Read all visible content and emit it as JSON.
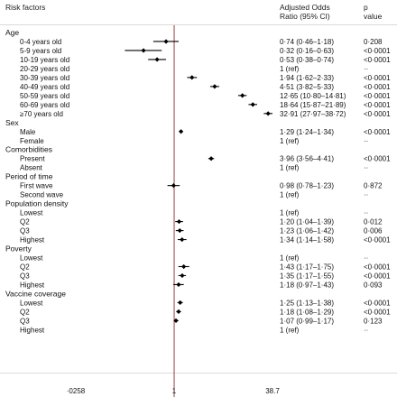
{
  "header": {
    "factor": "Risk factors",
    "or_line1": "Adjusted Odds",
    "or_line2": "Ratio (95% CI)",
    "p_line1": "p",
    "p_line2": "value"
  },
  "chart_data": {
    "type": "forest",
    "scale": "log",
    "xlim": [
      0.0258,
      38.7
    ],
    "xticks": [
      "·0258",
      "1",
      "38.7"
    ],
    "reference_line": 1,
    "colors": {
      "reference_line": "#8b2a2a",
      "marks": "#000000",
      "gridline": "#cfcfcf"
    },
    "rows": [
      {
        "kind": "group",
        "label": "Age"
      },
      {
        "kind": "item",
        "label": "0-4 years old",
        "or": 0.74,
        "lo": 0.46,
        "hi": 1.18,
        "text": "0·74 (0·46–1·18)",
        "p": "0·208"
      },
      {
        "kind": "item",
        "label": "5-9 years old",
        "or": 0.32,
        "lo": 0.16,
        "hi": 0.63,
        "text": "0·32 (0·16–0·63)",
        "p": "<0·0001"
      },
      {
        "kind": "item",
        "label": "10-19 years old",
        "or": 0.53,
        "lo": 0.38,
        "hi": 0.74,
        "text": "0·53 (0·38–0·74)",
        "p": "<0·0001"
      },
      {
        "kind": "item",
        "label": "20-29 years old",
        "text": "1 (ref)",
        "p": "··"
      },
      {
        "kind": "item",
        "label": "30-39 years old",
        "or": 1.94,
        "lo": 1.62,
        "hi": 2.33,
        "text": "1·94 (1·62–2·33)",
        "p": "<0·0001"
      },
      {
        "kind": "item",
        "label": "40-49 years old",
        "or": 4.51,
        "lo": 3.82,
        "hi": 5.33,
        "text": "4·51 (3·82–5·33)",
        "p": "<0·0001"
      },
      {
        "kind": "item",
        "label": "50-59 years old",
        "or": 12.65,
        "lo": 10.8,
        "hi": 14.81,
        "text": "12·65 (10·80–14·81)",
        "p": "<0·0001"
      },
      {
        "kind": "item",
        "label": "60-69 years old",
        "or": 18.64,
        "lo": 15.87,
        "hi": 21.89,
        "text": "18·64 (15·87–21·89)",
        "p": "<0·0001"
      },
      {
        "kind": "item",
        "label": "≥70 years old",
        "or": 32.91,
        "lo": 27.97,
        "hi": 38.72,
        "text": "32·91 (27·97–38·72)",
        "p": "<0·0001"
      },
      {
        "kind": "group",
        "label": "Sex"
      },
      {
        "kind": "item",
        "label": "Male",
        "or": 1.29,
        "lo": 1.24,
        "hi": 1.34,
        "text": "1·29 (1·24–1·34)",
        "p": "<0·0001"
      },
      {
        "kind": "item",
        "label": "Female",
        "text": "1 (ref)",
        "p": "··"
      },
      {
        "kind": "group",
        "label": "Comorbidities"
      },
      {
        "kind": "item",
        "label": "Present",
        "or": 3.96,
        "lo": 3.56,
        "hi": 4.41,
        "text": "3·96 (3·56–4·41)",
        "p": "<0·0001"
      },
      {
        "kind": "item",
        "label": "Absent",
        "text": "1 (ref)",
        "p": "··"
      },
      {
        "kind": "group",
        "label": "Period of time"
      },
      {
        "kind": "item",
        "label": "First wave",
        "or": 0.98,
        "lo": 0.78,
        "hi": 1.23,
        "text": "0·98 (0·78–1·23)",
        "p": "0·872"
      },
      {
        "kind": "item",
        "label": "Second wave",
        "text": "1 (ref)",
        "p": "··"
      },
      {
        "kind": "group",
        "label": "Population density"
      },
      {
        "kind": "item",
        "label": "Lowest",
        "text": "1 (ref)",
        "p": "··"
      },
      {
        "kind": "item",
        "label": "Q2",
        "or": 1.2,
        "lo": 1.04,
        "hi": 1.39,
        "text": "1·20 (1·04–1·39)",
        "p": "0·012"
      },
      {
        "kind": "item",
        "label": "Q3",
        "or": 1.23,
        "lo": 1.06,
        "hi": 1.42,
        "text": "1·23 (1·06–1·42)",
        "p": "0·006"
      },
      {
        "kind": "item",
        "label": "Highest",
        "or": 1.34,
        "lo": 1.14,
        "hi": 1.58,
        "text": "1·34 (1·14–1·58)",
        "p": "<0·0001"
      },
      {
        "kind": "group",
        "label": "Poverty"
      },
      {
        "kind": "item",
        "label": "Lowest",
        "text": "1 (ref)",
        "p": "··"
      },
      {
        "kind": "item",
        "label": "Q2",
        "or": 1.43,
        "lo": 1.17,
        "hi": 1.75,
        "text": "1·43 (1·17–1·75)",
        "p": "<0·0001"
      },
      {
        "kind": "item",
        "label": "Q3",
        "or": 1.35,
        "lo": 1.17,
        "hi": 1.55,
        "text": "1·35 (1·17–1·55)",
        "p": "<0·0001"
      },
      {
        "kind": "item",
        "label": "Highest",
        "or": 1.18,
        "lo": 0.97,
        "hi": 1.43,
        "text": "1·18 (0·97–1·43)",
        "p": "0·093"
      },
      {
        "kind": "group",
        "label": "Vaccine coverage"
      },
      {
        "kind": "item",
        "label": "Lowest",
        "or": 1.25,
        "lo": 1.13,
        "hi": 1.38,
        "text": "1·25 (1·13–1·38)",
        "p": "<0·0001"
      },
      {
        "kind": "item",
        "label": "Q2",
        "or": 1.18,
        "lo": 1.08,
        "hi": 1.29,
        "text": "1·18 (1·08–1·29)",
        "p": "<0·0001"
      },
      {
        "kind": "item",
        "label": "Q3",
        "or": 1.07,
        "lo": 0.99,
        "hi": 1.17,
        "text": "1·07 (0·99–1·17)",
        "p": "0·123"
      },
      {
        "kind": "item",
        "label": "Highest",
        "text": "1 (ref)",
        "p": "··"
      }
    ]
  }
}
